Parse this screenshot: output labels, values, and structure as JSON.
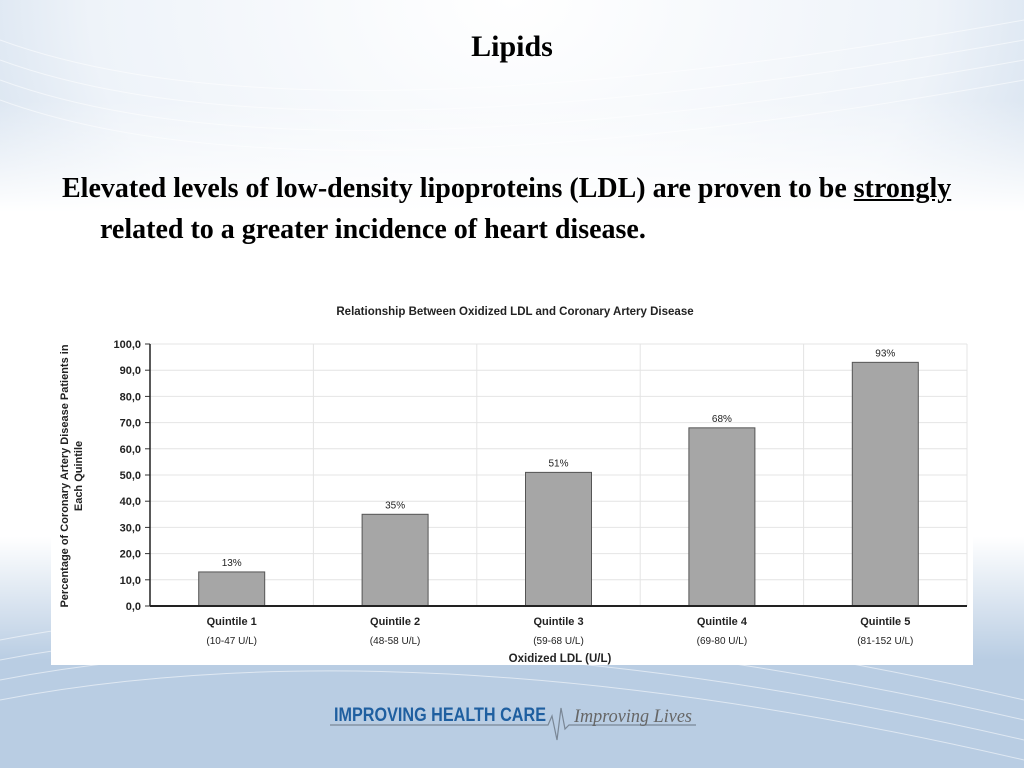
{
  "slide": {
    "title": "Lipids",
    "bullet": {
      "before": "Elevated levels of low-density lipoproteins (LDL) are proven to be ",
      "emphasis": "strongly",
      "after": " related to a greater incidence of heart disease."
    }
  },
  "footer": {
    "brand": "IMPROVING HEALTH CARE",
    "tagline": "Improving Lives"
  },
  "colors": {
    "bar_fill": "#a6a6a6",
    "bar_stroke": "#555555",
    "grid": "#e4e4e4",
    "text": "#222222",
    "brand_blue": "#1f5fa0"
  },
  "chart_data": {
    "type": "bar",
    "title": "Relationship Between Oxidized LDL and Coronary Artery Disease",
    "xlabel": "Oxidized LDL (U/L)",
    "ylabel_lines": [
      "Percentage of Coronary Artery Disease Patients in",
      "Each Quintile"
    ],
    "categories": [
      "Quintile 1",
      "Quintile 2",
      "Quintile 3",
      "Quintile 4",
      "Quintile 5"
    ],
    "subcategories": [
      "(10-47 U/L)",
      "(48-58 U/L)",
      "(59-68 U/L)",
      "(69-80 U/L)",
      "(81-152 U/L)"
    ],
    "values": [
      13,
      35,
      51,
      68,
      93
    ],
    "value_labels": [
      "13%",
      "35%",
      "51%",
      "68%",
      "93%"
    ],
    "ylim": [
      0,
      100
    ],
    "yticks": [
      "0,0",
      "10,0",
      "20,0",
      "30,0",
      "40,0",
      "50,0",
      "60,0",
      "70,0",
      "80,0",
      "90,0",
      "100,0"
    ],
    "grid": true,
    "legend": "none"
  }
}
